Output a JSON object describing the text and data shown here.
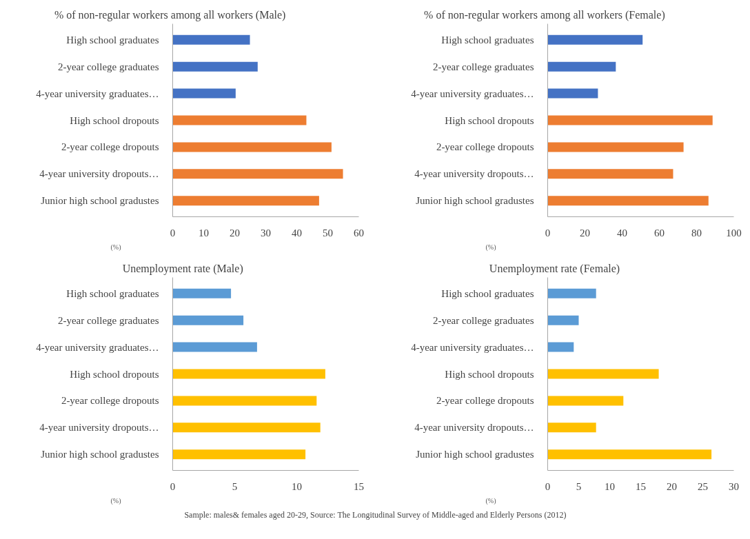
{
  "chart_data": [
    {
      "type": "bar",
      "orientation": "horizontal",
      "title": "% of non-regular workers among all workers (Male)",
      "xlabel": "(%)",
      "categories": [
        "High school graduates",
        "2-year college graduates",
        "4-year university graduates…",
        "High school dropouts",
        "2-year college dropouts",
        "4-year university dropouts…",
        "Junior high school gradustes"
      ],
      "values": [
        24.9,
        27.4,
        20.3,
        43.1,
        51.2,
        54.9,
        47.2
      ],
      "colors": [
        "#4472c4",
        "#4472c4",
        "#4472c4",
        "#ed7d31",
        "#ed7d31",
        "#ed7d31",
        "#ed7d31"
      ],
      "xlim": [
        0,
        60
      ],
      "xticks": [
        0,
        10,
        20,
        30,
        40,
        50,
        60
      ],
      "grid": false
    },
    {
      "type": "bar",
      "orientation": "horizontal",
      "title": "% of non-regular workers among all workers (Female)",
      "xlabel": "(%)",
      "categories": [
        "High school graduates",
        "2-year college graduates",
        "4-year university graduates…",
        "High school dropouts",
        "2-year college dropouts",
        "4-year university dropouts…",
        "Junior high school gradustes"
      ],
      "values": [
        51,
        36.6,
        27,
        88.6,
        73,
        67.4,
        86.4
      ],
      "colors": [
        "#4472c4",
        "#4472c4",
        "#4472c4",
        "#ed7d31",
        "#ed7d31",
        "#ed7d31",
        "#ed7d31"
      ],
      "xlim": [
        0,
        100
      ],
      "xticks": [
        0,
        20,
        40,
        60,
        80,
        100
      ],
      "grid": false
    },
    {
      "type": "bar",
      "orientation": "horizontal",
      "title": "Unemployment rate (Male)",
      "xlabel": "(%)",
      "categories": [
        "High school graduates",
        "2-year college graduates",
        "4-year university graduates…",
        "High school dropouts",
        "2-year college dropouts",
        "4-year university dropouts…",
        "Junior high school gradustes"
      ],
      "values": [
        4.7,
        5.7,
        6.8,
        12.3,
        11.6,
        11.9,
        10.7
      ],
      "colors": [
        "#5b9bd5",
        "#5b9bd5",
        "#5b9bd5",
        "#ffc000",
        "#ffc000",
        "#ffc000",
        "#ffc000"
      ],
      "xlim": [
        0,
        15
      ],
      "xticks": [
        0,
        5,
        10,
        15
      ],
      "grid": false
    },
    {
      "type": "bar",
      "orientation": "horizontal",
      "title": "Unemployment rate  (Female)",
      "xlabel": "(%)",
      "categories": [
        "High school graduates",
        "2-year college graduates",
        "4-year university graduates…",
        "High school dropouts",
        "2-year college dropouts",
        "4-year university dropouts…",
        "Junior high school gradustes"
      ],
      "values": [
        7.8,
        5.0,
        4.2,
        17.9,
        12.2,
        7.8,
        26.4
      ],
      "colors": [
        "#5b9bd5",
        "#5b9bd5",
        "#5b9bd5",
        "#ffc000",
        "#ffc000",
        "#ffc000",
        "#ffc000"
      ],
      "xlim": [
        0,
        30
      ],
      "xticks": [
        0,
        5,
        10,
        15,
        20,
        25,
        30
      ],
      "grid": false,
      "annotations": [
        "Sample: males& females aged 20-29, Source: The Longitudinal Survey of Middle-aged and Elderly Persons (2012)"
      ]
    }
  ]
}
